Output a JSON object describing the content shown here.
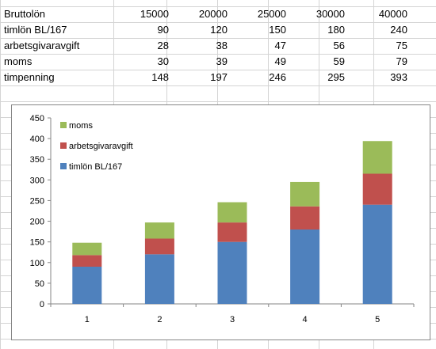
{
  "sheet": {
    "rows": [
      {
        "label": "Bruttolön",
        "values": [
          "15000",
          "20000",
          "25000",
          "30000",
          "40000"
        ]
      },
      {
        "label": "timlön BL/167",
        "values": [
          "90",
          "120",
          "150",
          "180",
          "240"
        ]
      },
      {
        "label": "arbetsgivaravgift",
        "values": [
          "28",
          "38",
          "47",
          "56",
          "75"
        ]
      },
      {
        "label": "moms",
        "values": [
          "30",
          "39",
          "49",
          "59",
          "79"
        ]
      },
      {
        "label": "timpenning",
        "values": [
          "148",
          "197",
          "246",
          "295",
          "393"
        ]
      }
    ]
  },
  "chart_data": {
    "type": "bar",
    "stacked": true,
    "categories": [
      "1",
      "2",
      "3",
      "4",
      "5"
    ],
    "series": [
      {
        "name": "timlön BL/167",
        "values": [
          90,
          120,
          150,
          180,
          240
        ],
        "color": "#4f81bd"
      },
      {
        "name": "arbetsgivaravgift",
        "values": [
          28,
          38,
          47,
          56,
          75
        ],
        "color": "#c0504d"
      },
      {
        "name": "moms",
        "values": [
          30,
          39,
          49,
          59,
          79
        ],
        "color": "#9bbb59"
      }
    ],
    "ylim": [
      0,
      450
    ],
    "yticks": [
      "0",
      "50",
      "100",
      "150",
      "200",
      "250",
      "300",
      "350",
      "400",
      "450"
    ],
    "grid": false,
    "legend": "top-left"
  }
}
